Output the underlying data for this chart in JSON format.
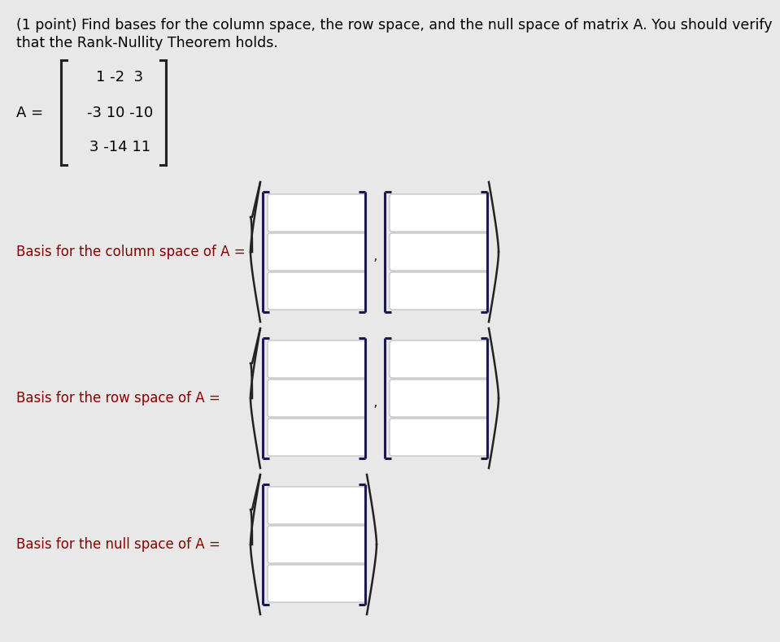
{
  "bg_color": "#e8e8e8",
  "title_text_line1": "(1 point) Find bases for the column space, the row space, and the null space of matrix A. You should verify",
  "title_text_line2": "that the Rank-Nullity Theorem holds.",
  "title_fontsize": 12.5,
  "title_color": "#000000",
  "matrix_rows": [
    "1 -2  3",
    "-3 10 -10",
    "3 -14 11"
  ],
  "matrix_color": "#000000",
  "label_col": "Basis for the column space of A = ",
  "label_row": "Basis for the row space of A = ",
  "label_null": "Basis for the null space of A = ",
  "label_color": "#8B0000",
  "label_fontsize": 12,
  "box_fill": "#ffffff",
  "box_edge_color": "#bbbbbb",
  "bracket_color": "#1a1a4e",
  "brace_color": "#222222",
  "mat_bracket_color": "#222222"
}
